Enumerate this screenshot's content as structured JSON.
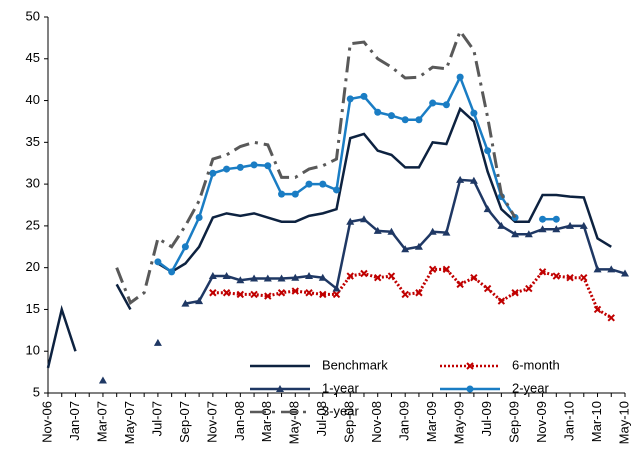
{
  "chart_data": {
    "type": "line",
    "categories": [
      "Nov-06",
      null,
      "Jan-07",
      null,
      "Mar-07",
      null,
      "May-07",
      null,
      "Jul-07",
      null,
      "Sep-07",
      null,
      "Nov-07",
      null,
      "Jan-08",
      null,
      "Mar-08",
      null,
      "May-08",
      null,
      "Jul-08",
      null,
      "Sep-08",
      null,
      "Nov-08",
      null,
      "Jan-09",
      null,
      "Mar-09",
      null,
      "May-09",
      null,
      "Jul-09",
      null,
      "Sep-09",
      null,
      "Nov-09",
      null,
      "Jan-10",
      null,
      "Mar-10",
      null,
      "May-10"
    ],
    "series": [
      {
        "name": "Benchmark",
        "color": "#0d2240",
        "line_style": "solid",
        "marker": "none",
        "values": [
          8,
          15,
          10,
          null,
          null,
          18,
          15,
          null,
          20.5,
          19.5,
          20.5,
          22.5,
          26,
          26.5,
          26.2,
          26.5,
          26,
          25.5,
          25.5,
          26.2,
          26.5,
          27,
          35.5,
          36,
          34,
          33.5,
          32,
          32,
          35,
          34.8,
          39,
          37.5,
          31.5,
          27,
          25.5,
          25.5,
          28.7,
          28.7,
          28.5,
          28.4,
          23.5,
          22.5,
          null
        ]
      },
      {
        "name": "6-month",
        "color": "#c00000",
        "line_style": "dotted",
        "marker": "x",
        "values": [
          null,
          null,
          null,
          null,
          null,
          null,
          null,
          null,
          null,
          null,
          null,
          null,
          17,
          17,
          16.8,
          16.8,
          16.6,
          17,
          17.2,
          17,
          16.8,
          16.8,
          19,
          19.3,
          18.8,
          19,
          16.8,
          17,
          19.8,
          19.8,
          18,
          18.8,
          17.5,
          16,
          17,
          17.5,
          19.5,
          19,
          18.8,
          18.8,
          15,
          14,
          null
        ]
      },
      {
        "name": "1-year",
        "color": "#1f3864",
        "line_style": "solid",
        "marker": "triangle",
        "values": [
          null,
          null,
          null,
          null,
          6.5,
          null,
          null,
          null,
          11,
          null,
          15.7,
          16,
          19,
          19,
          18.5,
          18.7,
          18.7,
          18.7,
          18.8,
          19,
          18.8,
          17.5,
          25.5,
          25.8,
          24.4,
          24.3,
          22.2,
          22.5,
          24.3,
          24.2,
          30.5,
          30.4,
          27,
          25,
          24,
          24,
          24.6,
          24.6,
          25,
          25,
          19.8,
          19.8,
          19.3
        ]
      },
      {
        "name": "2-year",
        "color": "#1a7dc4",
        "line_style": "solid",
        "marker": "circle",
        "values": [
          null,
          null,
          null,
          null,
          null,
          null,
          null,
          null,
          20.7,
          19.5,
          22.5,
          26,
          31.3,
          31.8,
          32,
          32.3,
          32.2,
          28.8,
          28.8,
          30,
          30,
          29.3,
          40.2,
          40.5,
          38.6,
          38.2,
          37.7,
          37.7,
          39.7,
          39.5,
          42.8,
          38.5,
          34,
          28.5,
          26,
          null,
          25.8,
          25.8,
          null,
          null,
          null,
          null,
          null
        ]
      },
      {
        "name": "3-year",
        "color": "#595959",
        "line_style": "dashdot",
        "marker": "none",
        "values": [
          null,
          null,
          null,
          null,
          null,
          20,
          15.8,
          17,
          23.5,
          22.5,
          25,
          28,
          33,
          33.5,
          34.5,
          35,
          34.7,
          30.8,
          30.8,
          31.8,
          32.2,
          33,
          46.8,
          47,
          45,
          44,
          42.7,
          42.8,
          44,
          43.8,
          48.3,
          46,
          38,
          28.8,
          26,
          null,
          null,
          null,
          null,
          null,
          null,
          null,
          null
        ]
      }
    ],
    "ylim": [
      5,
      50
    ],
    "yticks": [
      5,
      10,
      15,
      20,
      25,
      30,
      35,
      40,
      45,
      50
    ],
    "grid": false,
    "legend": "lower center"
  }
}
